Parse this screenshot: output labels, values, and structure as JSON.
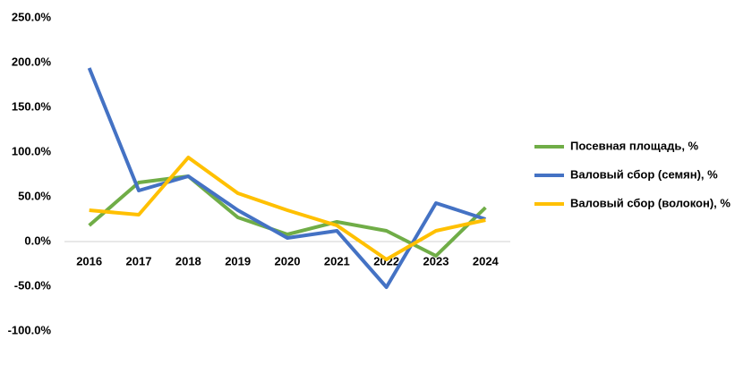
{
  "chart_data": {
    "type": "line",
    "categories": [
      "2016",
      "2017",
      "2018",
      "2019",
      "2020",
      "2021",
      "2022",
      "2023",
      "2024"
    ],
    "series": [
      {
        "name": "Посевная площадь, %",
        "color": "#70ad47",
        "values": [
          18,
          66,
          73,
          27,
          8,
          22,
          12,
          -16,
          38
        ]
      },
      {
        "name": "Валовый сбор (семян), %",
        "color": "#4472c4",
        "values": [
          194,
          57,
          73,
          35,
          4,
          12,
          -51,
          43,
          25
        ]
      },
      {
        "name": "Валовый сбор (волокон), %",
        "color": "#ffc000",
        "values": [
          35,
          30,
          94,
          54,
          35,
          18,
          -20,
          12,
          24
        ]
      }
    ],
    "ylim": [
      -100,
      250
    ],
    "yticks": [
      {
        "value": -100,
        "label": "-100.0%"
      },
      {
        "value": -50,
        "label": "-50.0%"
      },
      {
        "value": 0,
        "label": "0.0%"
      },
      {
        "value": 50,
        "label": "50.0%"
      },
      {
        "value": 100,
        "label": "100.0%"
      },
      {
        "value": 150,
        "label": "150.0%"
      },
      {
        "value": 200,
        "label": "200.0%"
      },
      {
        "value": 250,
        "label": "250.0%"
      }
    ],
    "legend": "right"
  }
}
